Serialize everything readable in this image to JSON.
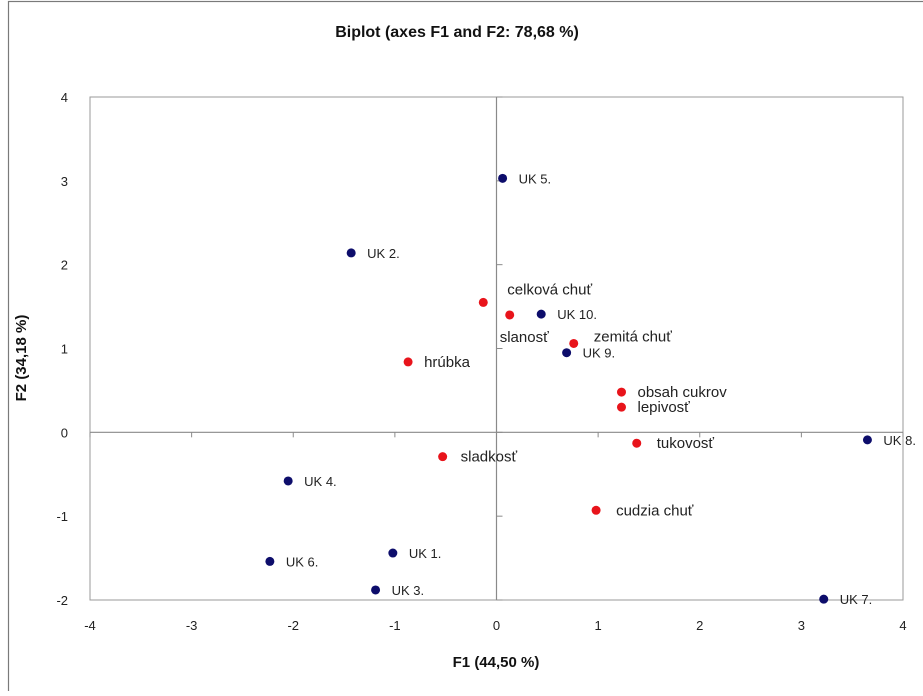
{
  "chart_data": {
    "type": "scatter",
    "title": "Biplot (axes F1 and  F2: 78,68 %)",
    "xlabel": "F1 (44,50 %)",
    "ylabel": "F2 (34,18 %)",
    "xlim": [
      -4,
      4
    ],
    "ylim": [
      -2,
      4
    ],
    "x_ticks": [
      "-4",
      "-3",
      "-2",
      "-1",
      "0",
      "1",
      "2",
      "3",
      "4"
    ],
    "y_ticks": [
      "-2",
      "-1",
      "0",
      "1",
      "2",
      "3",
      "4"
    ],
    "grid": false,
    "legend": "none",
    "colors": {
      "observations": "#0d0d6b",
      "variables": "#e8141b"
    },
    "series": [
      {
        "points": [
          {
            "label": "UK 1.",
            "x": -1.02,
            "y": -1.44
          },
          {
            "label": "UK 2.",
            "x": -1.43,
            "y": 2.14
          },
          {
            "label": "UK 3.",
            "x": -1.19,
            "y": -1.88
          },
          {
            "label": "UK 4.",
            "x": -2.05,
            "y": -0.58
          },
          {
            "label": "UK 5.",
            "x": 0.06,
            "y": 3.03
          },
          {
            "label": "UK 6.",
            "x": -2.23,
            "y": -1.54
          },
          {
            "label": "UK 7.",
            "x": 3.22,
            "y": -1.99
          },
          {
            "label": "UK 8.",
            "x": 3.65,
            "y": -0.09
          },
          {
            "label": "UK 9.",
            "x": 0.69,
            "y": 0.95
          },
          {
            "label": "UK 10.",
            "x": 0.44,
            "y": 1.41
          }
        ]
      },
      {
        "points": [
          {
            "label": "celková chuť",
            "x": -0.13,
            "y": 1.55
          },
          {
            "label": "slanosť",
            "x": 0.13,
            "y": 1.4
          },
          {
            "label": "zemitá chuť",
            "x": 0.76,
            "y": 1.06
          },
          {
            "label": "hrúbka",
            "x": -0.87,
            "y": 0.84
          },
          {
            "label": "obsah cukrov",
            "x": 1.23,
            "y": 0.48
          },
          {
            "label": "lepivosť",
            "x": 1.23,
            "y": 0.3
          },
          {
            "label": "tukovosť",
            "x": 1.38,
            "y": -0.13
          },
          {
            "label": "sladkosť",
            "x": -0.53,
            "y": -0.29
          },
          {
            "label": "cudzia chuť",
            "x": 0.98,
            "y": -0.93
          }
        ]
      }
    ]
  }
}
